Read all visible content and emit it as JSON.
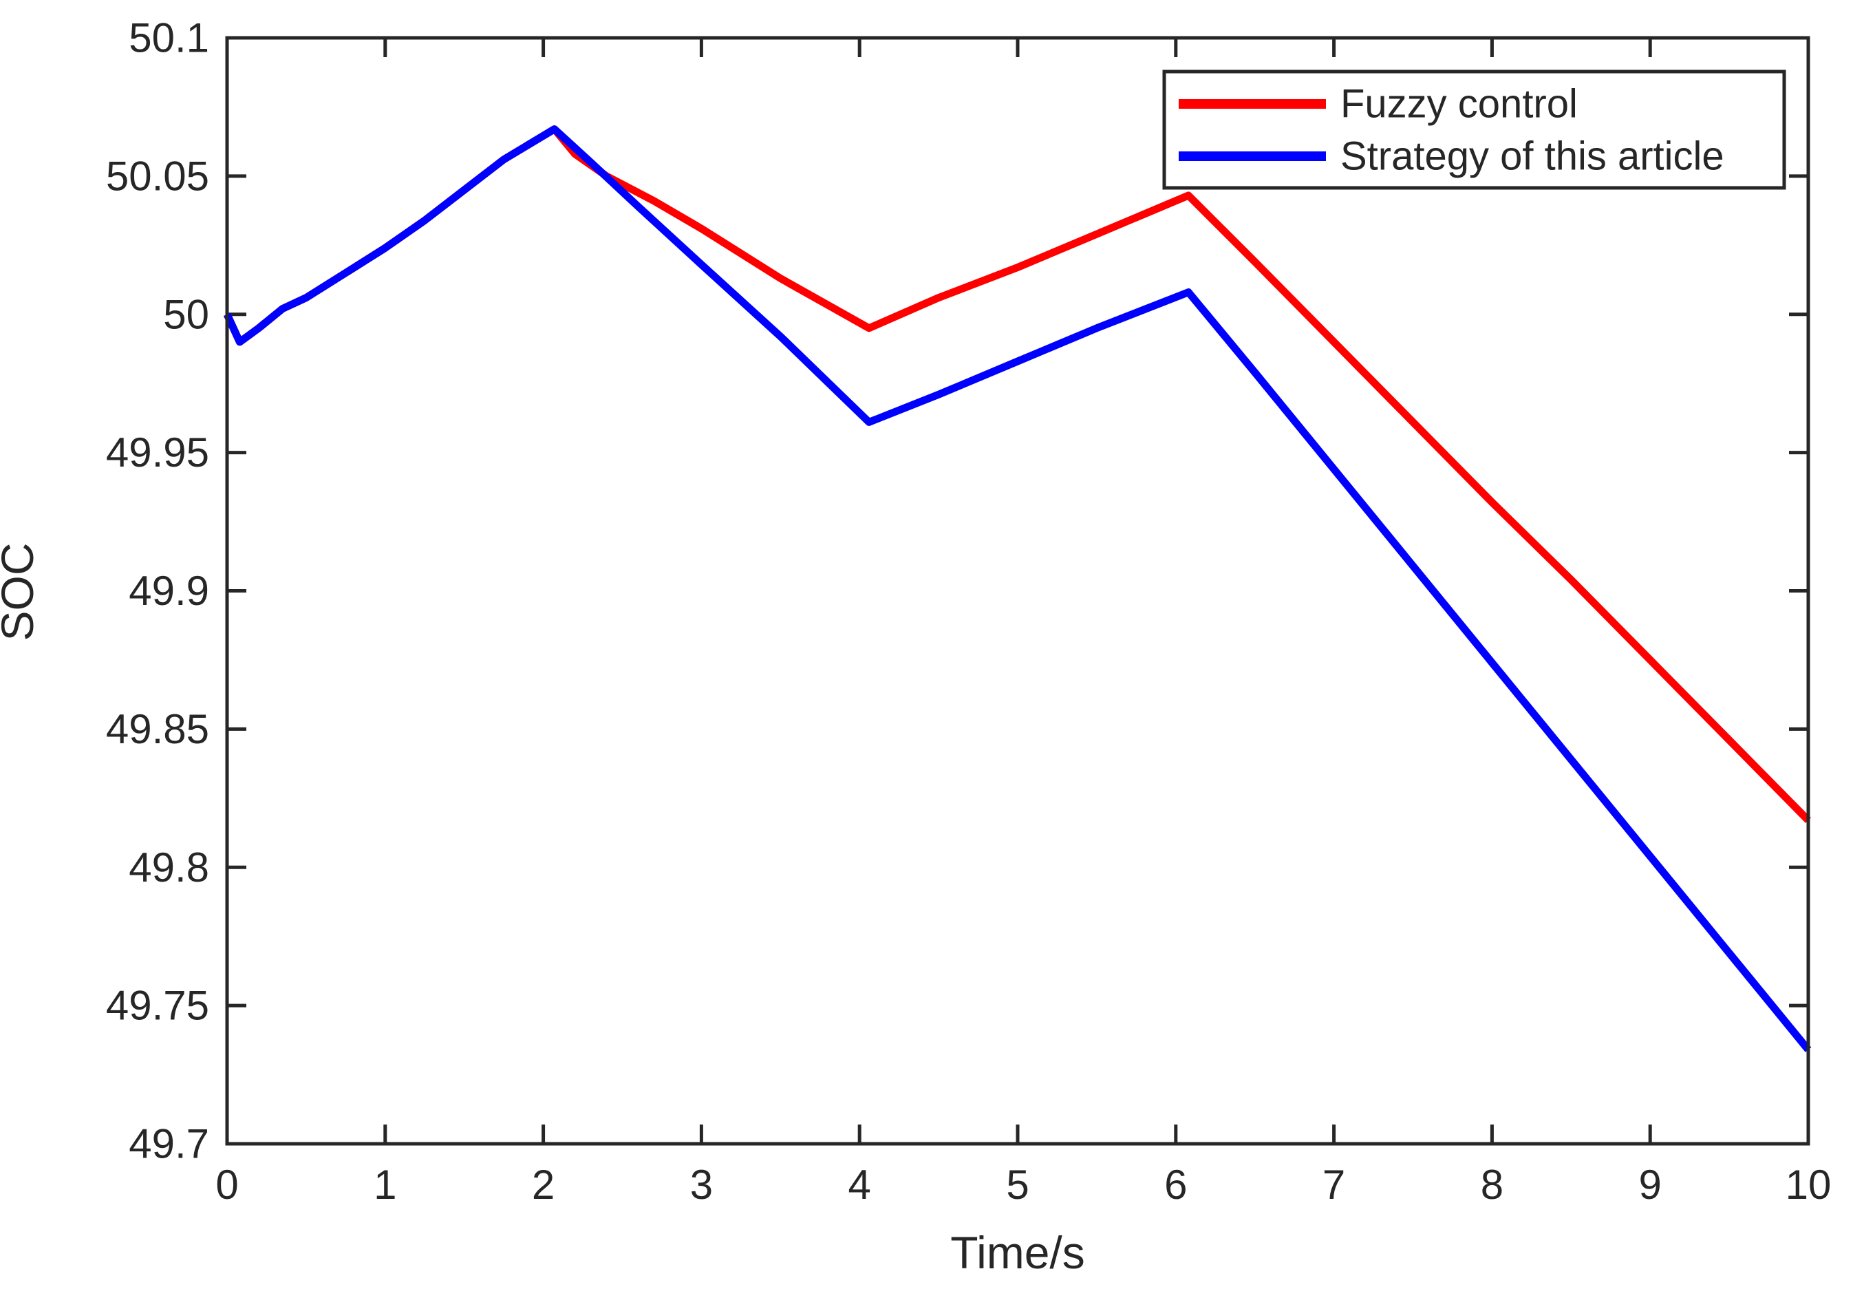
{
  "figure": {
    "background": "#ffffff"
  },
  "chart_data": {
    "type": "line",
    "title": "",
    "xlabel": "Time/s",
    "ylabel": "SOC",
    "xlim": [
      0,
      10
    ],
    "ylim": [
      49.7,
      50.1
    ],
    "x_ticks": [
      0,
      1,
      2,
      3,
      4,
      5,
      6,
      7,
      8,
      9,
      10
    ],
    "x_tick_labels": [
      "0",
      "1",
      "2",
      "3",
      "4",
      "5",
      "6",
      "7",
      "8",
      "9",
      "10"
    ],
    "y_ticks": [
      49.7,
      49.75,
      49.8,
      49.85,
      49.9,
      49.95,
      50,
      50.05,
      50.1
    ],
    "y_tick_labels": [
      "49.7",
      "49.75",
      "49.8",
      "49.85",
      "49.9",
      "49.95",
      "50",
      "50.05",
      "50.1"
    ],
    "grid": false,
    "axis_color": "#262626",
    "legend": {
      "position": "top-right",
      "border_color": "#262626",
      "background": "#ffffff"
    },
    "series": [
      {
        "name": "Fuzzy control",
        "color": "#ff0000",
        "points": [
          [
            0,
            50.0
          ],
          [
            0.08,
            49.99
          ],
          [
            0.2,
            49.995
          ],
          [
            0.35,
            50.002
          ],
          [
            0.5,
            50.006
          ],
          [
            0.75,
            50.015
          ],
          [
            1,
            50.024
          ],
          [
            1.25,
            50.034
          ],
          [
            1.5,
            50.045
          ],
          [
            1.75,
            50.056
          ],
          [
            2.07,
            50.067
          ],
          [
            2.2,
            50.058
          ],
          [
            2.4,
            50.05
          ],
          [
            2.7,
            50.041
          ],
          [
            3,
            50.031
          ],
          [
            3.5,
            50.013
          ],
          [
            4.06,
            49.995
          ],
          [
            4.5,
            50.006
          ],
          [
            5,
            50.017
          ],
          [
            5.5,
            50.029
          ],
          [
            6.08,
            50.043
          ],
          [
            6.5,
            50.019
          ],
          [
            7,
            49.99
          ],
          [
            7.5,
            49.961
          ],
          [
            8,
            49.932
          ],
          [
            8.5,
            49.904
          ],
          [
            9,
            49.875
          ],
          [
            9.5,
            49.846
          ],
          [
            10,
            49.817
          ]
        ]
      },
      {
        "name": "Strategy of this article",
        "color": "#0000ff",
        "points": [
          [
            0,
            50.0
          ],
          [
            0.08,
            49.99
          ],
          [
            0.2,
            49.995
          ],
          [
            0.35,
            50.002
          ],
          [
            0.5,
            50.006
          ],
          [
            0.75,
            50.015
          ],
          [
            1,
            50.024
          ],
          [
            1.25,
            50.034
          ],
          [
            1.5,
            50.045
          ],
          [
            1.75,
            50.056
          ],
          [
            2.07,
            50.067
          ],
          [
            2.3,
            50.055
          ],
          [
            2.6,
            50.039
          ],
          [
            3,
            50.018
          ],
          [
            3.5,
            49.992
          ],
          [
            4.06,
            49.961
          ],
          [
            4.5,
            49.971
          ],
          [
            5,
            49.983
          ],
          [
            5.5,
            49.995
          ],
          [
            6.08,
            50.008
          ],
          [
            6.5,
            49.979
          ],
          [
            7,
            49.944
          ],
          [
            7.5,
            49.909
          ],
          [
            8,
            49.874
          ],
          [
            8.5,
            49.839
          ],
          [
            9,
            49.804
          ],
          [
            9.5,
            49.769
          ],
          [
            10,
            49.734
          ]
        ]
      }
    ]
  }
}
